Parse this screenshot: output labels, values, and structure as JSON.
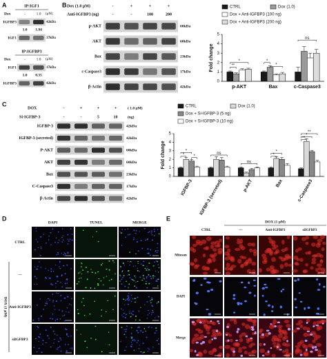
{
  "panel_labels": [
    "A",
    "B",
    "C",
    "D",
    "E"
  ],
  "panel_a": {
    "blots": [
      {
        "title": "IP:IGF1",
        "dox_label": "Dox",
        "lanes": [
          "-",
          "1.0"
        ],
        "unit": "(μM)",
        "rows": [
          {
            "name": "IGFBP3",
            "size": "42kDa"
          },
          {
            "name": "IGF1",
            "size": "17kDa"
          }
        ],
        "quant": [
          "1.0",
          "1.84"
        ]
      },
      {
        "title": "IP:IGFBP3",
        "dox_label": "Dox",
        "lanes": [
          "-",
          "1.0"
        ],
        "unit": "(μM)",
        "rows": [
          {
            "name": "IGF1",
            "size": "17kDa"
          },
          {
            "name": "IGFBP3",
            "size": "42kDa"
          }
        ],
        "quant": [
          "1.0",
          "0.35"
        ]
      }
    ]
  },
  "panel_b": {
    "conditions": [
      {
        "label": "Dox  (1.0 μM)",
        "lanes": [
          "-",
          "+",
          "+",
          "+"
        ]
      },
      {
        "label": "Anti-IGFBP3 (ng)",
        "lanes": [
          "-",
          "-",
          "100",
          "200"
        ]
      }
    ],
    "rows": [
      {
        "name": "p-AKT",
        "size": "60kDa"
      },
      {
        "name": "AKT",
        "size": "60kDa"
      },
      {
        "name": "Bax",
        "size": "23kDa"
      },
      {
        "name": "c-Caspase3",
        "size": "17kDa"
      },
      {
        "name": "β-Actin",
        "size": "42kDa"
      }
    ]
  },
  "panel_c": {
    "conditions": [
      {
        "label": "DOX",
        "lanes": [
          "-",
          "+",
          "+",
          "+"
        ],
        "unit": "( 1.0 μM)"
      },
      {
        "label": "Si-IGFBP-3",
        "lanes": [
          "-",
          "-",
          "5",
          "10"
        ],
        "unit": "(ng)"
      }
    ],
    "rows": [
      {
        "name": "IGFBP-3",
        "size": "42kDa"
      },
      {
        "name": "IGFBP-3  (secreted)",
        "size": "42kDa"
      },
      {
        "name": "P-AKT",
        "size": "60kDa"
      },
      {
        "name": "AKT",
        "size": "60kDa"
      },
      {
        "name": "Bax",
        "size": "23kDa"
      },
      {
        "name": "C-Caspase3",
        "size": "17kDa"
      },
      {
        "name": "β-Actin",
        "size": "42kDa"
      }
    ]
  },
  "chart_data": [
    {
      "type": "bar",
      "y_label": "Fold change",
      "categories": [
        "p-AKT",
        "Bax",
        "c-Caspase3"
      ],
      "series": [
        {
          "name": "CTRL",
          "color": "#1a1a1a",
          "values": [
            1.0,
            1.0,
            1.0
          ],
          "errors": [
            0.1,
            0.1,
            0.5
          ]
        },
        {
          "name": "Dox (1.0)",
          "color": "#9a9a9a",
          "values": [
            0.8,
            1.5,
            3.2
          ],
          "errors": [
            0.1,
            0.15,
            0.5
          ]
        },
        {
          "name": "Dox + Anti-IGFBP3 (100 ng)",
          "color": "#ffffff",
          "values": [
            1.2,
            0.7,
            2.5
          ],
          "errors": [
            0.15,
            0.1,
            0.5
          ]
        },
        {
          "name": "Dox + Anti-IGFBP3 (200 ng)",
          "color": "#dcdcdc",
          "values": [
            1.3,
            0.8,
            3.0
          ],
          "errors": [
            0.1,
            0.15,
            0.4
          ]
        }
      ],
      "ylim": [
        0,
        5
      ],
      "yticks": [
        0,
        1,
        2,
        3,
        4,
        5
      ],
      "grid": false,
      "legend": "top",
      "annotations": [
        "*",
        "**",
        "*",
        "*",
        "ns"
      ]
    },
    {
      "type": "bar",
      "y_label": "Fold change",
      "categories": [
        "IGFBP-3",
        "IGFBP-3 (secreted)",
        "p-AKT",
        "Bax",
        "c-Caspase3"
      ],
      "series": [
        {
          "name": "CTRL",
          "color": "#1a1a1a",
          "values": [
            1.0,
            1.0,
            1.0,
            1.0,
            0.9
          ],
          "errors": [
            0.1,
            0.1,
            0.1,
            0.1,
            0.1
          ]
        },
        {
          "name": "Dox (1.0)",
          "color": "#d9d9d9",
          "values": [
            2.0,
            2.0,
            0.4,
            2.1,
            4.1
          ],
          "errors": [
            0.2,
            0.3,
            0.1,
            0.2,
            0.3
          ]
        },
        {
          "name": "Dox + Si-IGFBP-3 (5 ng)",
          "color": "#888888",
          "values": [
            1.8,
            1.9,
            0.8,
            2.0,
            2.9
          ],
          "errors": [
            0.2,
            0.3,
            0.15,
            0.2,
            0.15
          ]
        },
        {
          "name": "Dox + Si-IGFBP-3 (10 ng)",
          "color": "#ffffff",
          "values": [
            1.1,
            1.1,
            1.0,
            1.3,
            1.7
          ],
          "errors": [
            0.1,
            0.1,
            0.1,
            0.2,
            0.2
          ]
        }
      ],
      "ylim": [
        0,
        5
      ],
      "yticks": [
        0,
        1,
        2,
        3,
        4,
        5
      ],
      "grid": false,
      "legend": "top",
      "annotations": [
        "*",
        "*",
        "*",
        "ns",
        "ns",
        "*",
        "*",
        "**",
        "*",
        "**"
      ]
    }
  ],
  "panel_d": {
    "columns": [
      "DAPI",
      "TUNEL",
      "MERGE"
    ],
    "rows": [
      "CTRL",
      "—",
      "Anti-IGFBP3",
      "siIGFBP3"
    ],
    "group_label": "DOX (1 μM)",
    "scale_bar": "100 μm"
  },
  "panel_e": {
    "control": "CTRL",
    "group_label": "DOX (1 μM)",
    "columns": [
      "—",
      "Anti-IGFBP3",
      "siIGFBP3"
    ],
    "rows": [
      "Mitoson",
      "DAPI",
      "Merge"
    ],
    "scale_bar": "100 μm"
  }
}
